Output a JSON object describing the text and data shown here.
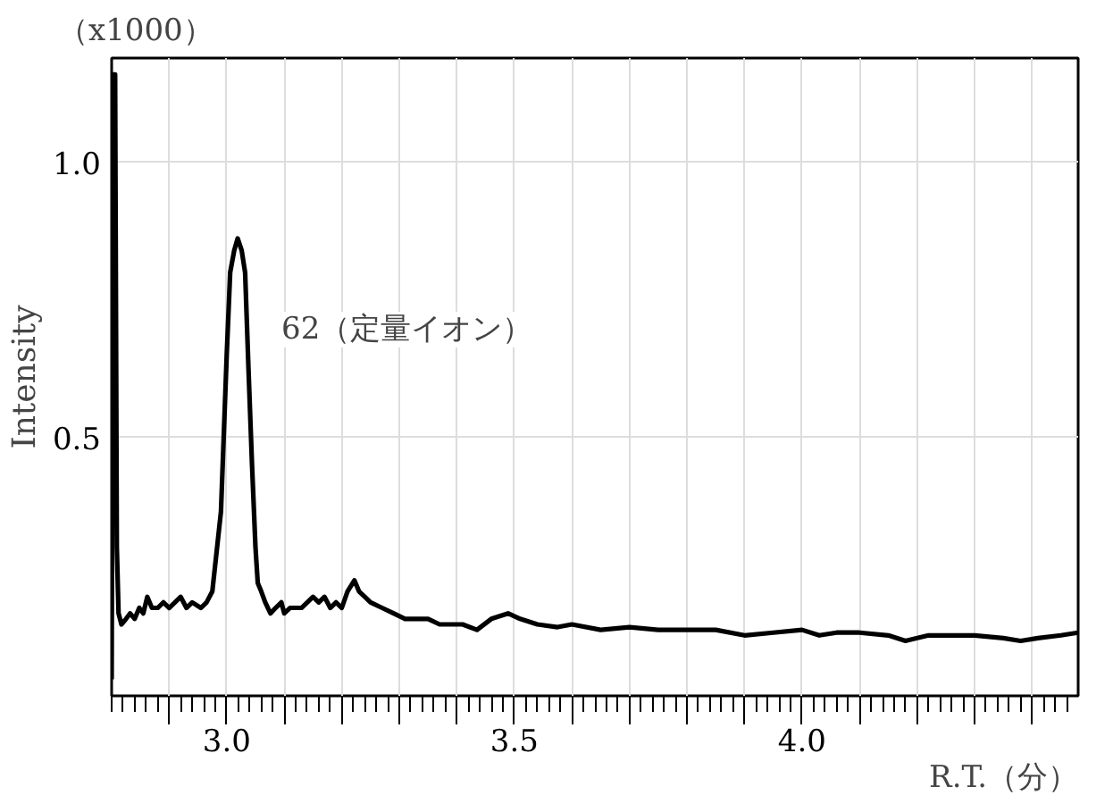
{
  "chart_data": {
    "type": "line",
    "xlabel": "R.T.（分）",
    "ylabel": "Intensity",
    "annotations": [
      "（x1000）",
      "62（定量イオン）"
    ],
    "xlim": [
      2.8,
      4.48
    ],
    "ylim": [
      0.03,
      1.19
    ],
    "xticks": [
      {
        "value": 2.9,
        "label": null
      },
      {
        "value": 3.0,
        "label": "3.0"
      },
      {
        "value": 3.1,
        "label": null
      },
      {
        "value": 3.2,
        "label": null
      },
      {
        "value": 3.3,
        "label": null
      },
      {
        "value": 3.4,
        "label": null
      },
      3.5,
      {
        "value": 3.6,
        "label": null
      },
      {
        "value": 3.7,
        "label": null
      },
      {
        "value": 3.8,
        "label": null
      },
      {
        "value": 3.9,
        "label": null
      },
      {
        "value": 4.0,
        "label": "4.0"
      },
      {
        "value": 4.1,
        "label": null
      },
      {
        "value": 4.2,
        "label": null
      },
      {
        "value": 4.3,
        "label": null
      },
      {
        "value": 4.4,
        "label": null
      }
    ],
    "yticks": [
      0.5,
      {
        "value": 1.0,
        "label": "1.0"
      }
    ],
    "grid": true,
    "marker": "none",
    "line_style": "solid",
    "series": [
      {
        "color": "#000000",
        "x": [
          2.8,
          2.803,
          2.806,
          2.809,
          2.812,
          2.817,
          2.825,
          2.832,
          2.84,
          2.848,
          2.855,
          2.862,
          2.87,
          2.88,
          2.89,
          2.9,
          2.91,
          2.92,
          2.93,
          2.94,
          2.955,
          2.965,
          2.975,
          2.99,
          3.0,
          3.006,
          3.013,
          3.019,
          3.026,
          3.032,
          3.038,
          3.044,
          3.05,
          3.054,
          3.06,
          3.067,
          3.076,
          3.085,
          3.095,
          3.1,
          3.11,
          3.12,
          3.13,
          3.14,
          3.15,
          3.16,
          3.17,
          3.18,
          3.19,
          3.2,
          3.21,
          3.222,
          3.23,
          3.24,
          3.25,
          3.27,
          3.29,
          3.31,
          3.33,
          3.35,
          3.37,
          3.39,
          3.41,
          3.435,
          3.46,
          3.489,
          3.51,
          3.54,
          3.575,
          3.6,
          3.65,
          3.7,
          3.75,
          3.8,
          3.85,
          3.9,
          3.95,
          4.0,
          4.03,
          4.06,
          4.1,
          4.15,
          4.18,
          4.22,
          4.26,
          4.3,
          4.35,
          4.38,
          4.41,
          4.45,
          4.48
        ],
        "values": [
          0.06,
          1.16,
          1.16,
          0.3,
          0.18,
          0.16,
          0.17,
          0.18,
          0.17,
          0.19,
          0.18,
          0.21,
          0.19,
          0.19,
          0.2,
          0.19,
          0.2,
          0.21,
          0.19,
          0.2,
          0.19,
          0.2,
          0.22,
          0.365,
          0.65,
          0.8,
          0.84,
          0.862,
          0.84,
          0.8,
          0.62,
          0.45,
          0.3,
          0.235,
          0.22,
          0.2,
          0.18,
          0.19,
          0.2,
          0.18,
          0.19,
          0.19,
          0.19,
          0.2,
          0.21,
          0.2,
          0.21,
          0.19,
          0.2,
          0.19,
          0.22,
          0.24,
          0.22,
          0.21,
          0.2,
          0.19,
          0.18,
          0.17,
          0.17,
          0.17,
          0.16,
          0.16,
          0.16,
          0.15,
          0.17,
          0.18,
          0.17,
          0.16,
          0.155,
          0.16,
          0.15,
          0.155,
          0.15,
          0.15,
          0.15,
          0.14,
          0.145,
          0.15,
          0.14,
          0.145,
          0.145,
          0.14,
          0.13,
          0.14,
          0.14,
          0.14,
          0.135,
          0.13,
          0.135,
          0.14,
          0.145
        ]
      }
    ]
  }
}
